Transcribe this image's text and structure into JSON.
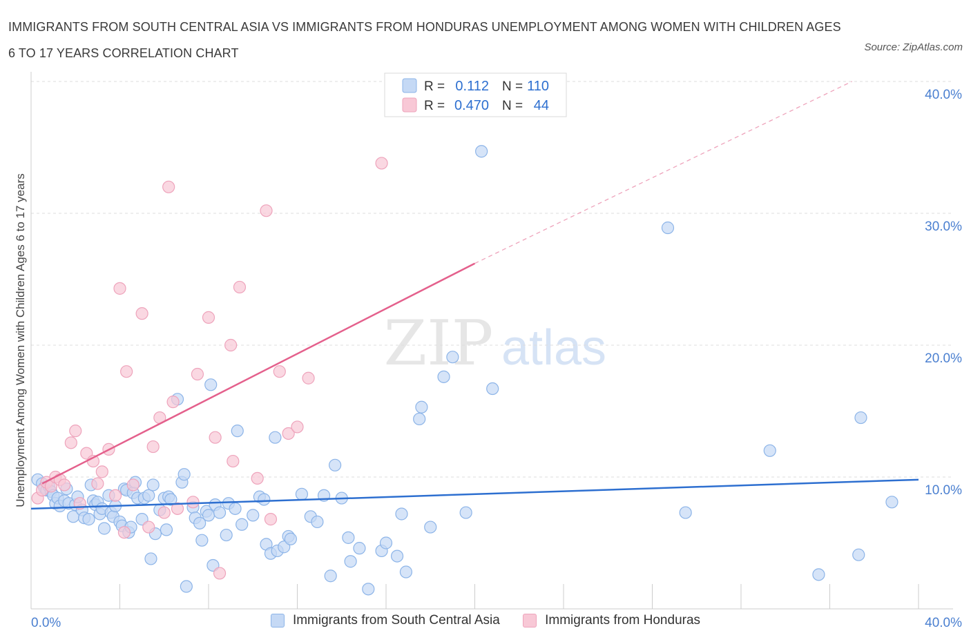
{
  "title": "IMMIGRANTS FROM SOUTH CENTRAL ASIA VS IMMIGRANTS FROM HONDURAS UNEMPLOYMENT AMONG WOMEN WITH CHILDREN AGES 6 TO 17 YEARS CORRELATION CHART",
  "source": "Source: ZipAtlas.com",
  "watermark": {
    "zip": "ZIP",
    "atlas": "atlas"
  },
  "stats_legend": {
    "r_label": "R =",
    "n_label": "N =",
    "rows": [
      {
        "r": "0.112",
        "n": "110",
        "color": "#6fa0e8"
      },
      {
        "r": "0.470",
        "n": "44",
        "color": "#f0a0b8"
      }
    ]
  },
  "colors": {
    "blue_fill": "#c5d9f5",
    "blue_stroke": "#8cb4e8",
    "blue_line": "#2d6fd0",
    "pink_fill": "#f8c8d6",
    "pink_stroke": "#eea3bb",
    "pink_line": "#e4608c",
    "axis_text": "#4a7fd0",
    "grid": "#dddddd"
  },
  "chart_data": {
    "type": "scatter",
    "title": "IMMIGRANTS FROM SOUTH CENTRAL ASIA VS IMMIGRANTS FROM HONDURAS UNEMPLOYMENT AMONG WOMEN WITH CHILDREN AGES 6 TO 17 YEARS CORRELATION CHART",
    "xlabel": "",
    "ylabel": "Unemployment Among Women with Children Ages 6 to 17 years",
    "xlim": [
      0,
      40
    ],
    "ylim": [
      0,
      40
    ],
    "x_tick_labels": [
      "0.0%",
      "40.0%"
    ],
    "y_ticks": [
      10,
      20,
      30,
      40
    ],
    "y_tick_labels": [
      "10.0%",
      "20.0%",
      "30.0%",
      "40.0%"
    ],
    "grid": true,
    "series": [
      {
        "name": "Immigrants from South Central Asia",
        "R": 0.112,
        "N": 110,
        "trend": {
          "x": [
            0,
            40
          ],
          "y": [
            7.6,
            9.8
          ]
        },
        "points": [
          [
            0.3,
            9.8
          ],
          [
            0.5,
            9.5
          ],
          [
            0.6,
            9.2
          ],
          [
            0.7,
            9.0
          ],
          [
            0.8,
            9.3
          ],
          [
            0.9,
            8.9
          ],
          [
            1.0,
            8.6
          ],
          [
            1.1,
            8.0
          ],
          [
            1.2,
            8.4
          ],
          [
            1.3,
            7.8
          ],
          [
            1.5,
            8.2
          ],
          [
            1.6,
            9.1
          ],
          [
            1.7,
            8.0
          ],
          [
            1.9,
            7.0
          ],
          [
            2.0,
            7.9
          ],
          [
            2.1,
            8.5
          ],
          [
            2.3,
            7.5
          ],
          [
            2.4,
            6.9
          ],
          [
            2.6,
            6.8
          ],
          [
            2.7,
            9.4
          ],
          [
            2.8,
            8.2
          ],
          [
            2.9,
            7.9
          ],
          [
            3.0,
            8.1
          ],
          [
            3.1,
            7.2
          ],
          [
            3.2,
            7.6
          ],
          [
            3.3,
            6.1
          ],
          [
            3.5,
            8.6
          ],
          [
            3.6,
            7.3
          ],
          [
            3.7,
            7.0
          ],
          [
            3.8,
            7.8
          ],
          [
            4.0,
            6.6
          ],
          [
            4.1,
            6.3
          ],
          [
            4.2,
            9.1
          ],
          [
            4.3,
            9.0
          ],
          [
            4.4,
            5.8
          ],
          [
            4.5,
            6.2
          ],
          [
            4.6,
            8.8
          ],
          [
            4.7,
            9.6
          ],
          [
            4.8,
            8.4
          ],
          [
            5.0,
            6.8
          ],
          [
            5.1,
            8.4
          ],
          [
            5.3,
            8.6
          ],
          [
            5.4,
            3.8
          ],
          [
            5.5,
            9.4
          ],
          [
            5.6,
            5.7
          ],
          [
            5.8,
            7.5
          ],
          [
            6.0,
            8.4
          ],
          [
            6.1,
            6.0
          ],
          [
            6.2,
            8.5
          ],
          [
            6.3,
            8.3
          ],
          [
            6.6,
            15.9
          ],
          [
            6.8,
            9.6
          ],
          [
            6.9,
            10.2
          ],
          [
            7.0,
            1.7
          ],
          [
            7.3,
            7.7
          ],
          [
            7.4,
            6.9
          ],
          [
            7.6,
            6.5
          ],
          [
            7.7,
            5.2
          ],
          [
            7.9,
            7.4
          ],
          [
            8.0,
            7.1
          ],
          [
            8.1,
            17.0
          ],
          [
            8.2,
            3.3
          ],
          [
            8.3,
            7.9
          ],
          [
            8.5,
            7.3
          ],
          [
            8.8,
            5.6
          ],
          [
            8.9,
            8.0
          ],
          [
            9.2,
            7.6
          ],
          [
            9.3,
            13.5
          ],
          [
            9.5,
            6.4
          ],
          [
            10.0,
            7.1
          ],
          [
            10.3,
            8.5
          ],
          [
            10.5,
            8.3
          ],
          [
            10.6,
            4.9
          ],
          [
            10.8,
            4.2
          ],
          [
            11.0,
            13.0
          ],
          [
            11.1,
            4.4
          ],
          [
            11.4,
            4.7
          ],
          [
            11.6,
            5.5
          ],
          [
            11.7,
            5.3
          ],
          [
            12.2,
            8.7
          ],
          [
            12.6,
            7.0
          ],
          [
            12.9,
            6.6
          ],
          [
            13.2,
            8.6
          ],
          [
            13.5,
            2.5
          ],
          [
            13.7,
            10.9
          ],
          [
            14.0,
            8.4
          ],
          [
            14.3,
            5.4
          ],
          [
            14.4,
            3.6
          ],
          [
            14.8,
            4.6
          ],
          [
            15.2,
            1.5
          ],
          [
            15.8,
            4.4
          ],
          [
            16.0,
            5.0
          ],
          [
            16.5,
            4.0
          ],
          [
            16.7,
            7.2
          ],
          [
            16.9,
            2.8
          ],
          [
            17.5,
            14.4
          ],
          [
            17.6,
            15.3
          ],
          [
            18.0,
            6.2
          ],
          [
            18.6,
            17.6
          ],
          [
            19.6,
            7.3
          ],
          [
            20.3,
            34.7
          ],
          [
            19.0,
            19.1
          ],
          [
            20.8,
            16.7
          ],
          [
            28.7,
            28.9
          ],
          [
            29.5,
            7.3
          ],
          [
            33.3,
            12.0
          ],
          [
            35.5,
            2.6
          ],
          [
            37.3,
            4.1
          ],
          [
            37.4,
            14.5
          ],
          [
            38.8,
            8.1
          ]
        ]
      },
      {
        "name": "Immigrants from Honduras",
        "R": 0.47,
        "N": 44,
        "trend": {
          "x": [
            0.5,
            20.0
          ],
          "y": [
            9.5,
            26.2
          ]
        },
        "trend_extension": {
          "x": [
            20.0,
            37.0
          ],
          "y": [
            26.2,
            40.0
          ]
        },
        "points": [
          [
            0.3,
            8.4
          ],
          [
            0.5,
            9.0
          ],
          [
            0.7,
            9.6
          ],
          [
            0.9,
            9.3
          ],
          [
            1.1,
            10.0
          ],
          [
            1.3,
            9.8
          ],
          [
            1.5,
            9.4
          ],
          [
            1.8,
            12.6
          ],
          [
            2.0,
            13.5
          ],
          [
            2.2,
            8.0
          ],
          [
            2.5,
            11.8
          ],
          [
            2.8,
            11.2
          ],
          [
            3.0,
            9.5
          ],
          [
            3.2,
            10.4
          ],
          [
            3.5,
            12.1
          ],
          [
            3.8,
            8.6
          ],
          [
            4.0,
            24.3
          ],
          [
            4.2,
            5.8
          ],
          [
            4.3,
            18.0
          ],
          [
            4.6,
            9.4
          ],
          [
            5.0,
            22.4
          ],
          [
            5.3,
            6.2
          ],
          [
            5.5,
            12.3
          ],
          [
            5.8,
            14.5
          ],
          [
            6.0,
            7.3
          ],
          [
            6.2,
            32.0
          ],
          [
            6.4,
            15.7
          ],
          [
            6.6,
            7.6
          ],
          [
            7.5,
            17.8
          ],
          [
            8.0,
            22.1
          ],
          [
            8.3,
            13.0
          ],
          [
            8.5,
            2.7
          ],
          [
            9.0,
            20.0
          ],
          [
            9.1,
            11.2
          ],
          [
            9.4,
            24.4
          ],
          [
            10.2,
            9.9
          ],
          [
            10.6,
            30.2
          ],
          [
            10.8,
            6.8
          ],
          [
            11.2,
            18.0
          ],
          [
            11.6,
            13.3
          ],
          [
            12.0,
            13.8
          ],
          [
            12.5,
            17.5
          ],
          [
            7.3,
            8.1
          ],
          [
            15.8,
            33.8
          ]
        ]
      }
    ]
  },
  "bottom_legend": [
    {
      "label": "Immigrants from South Central Asia",
      "color": "blue"
    },
    {
      "label": "Immigrants from Honduras",
      "color": "pink"
    }
  ]
}
